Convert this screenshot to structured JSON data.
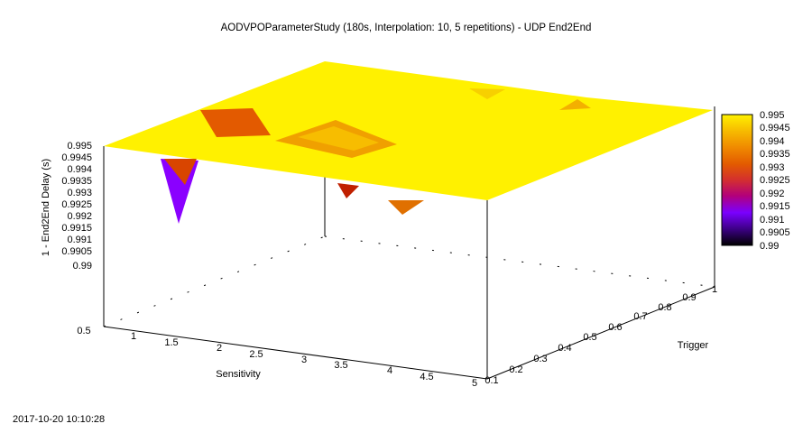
{
  "chart_data": {
    "type": "surface",
    "title": "AODVPOParameterStudy (180s, Interpolation: 10, 5 repetitions) - UDP End2End",
    "xlabel": "Sensitivity",
    "ylabel": "Trigger",
    "zlabel": "1 - End2End Delay (s)",
    "timestamp": "2017-10-20 10:10:28",
    "x_ticks": [
      "0.5",
      "1",
      "1.5",
      "2",
      "2.5",
      "3",
      "3.5",
      "4",
      "4.5",
      "5"
    ],
    "y_ticks": [
      "0.1",
      "0.2",
      "0.3",
      "0.4",
      "0.5",
      "0.6",
      "0.7",
      "0.8",
      "0.9",
      "1"
    ],
    "z_ticks": [
      "0.99",
      "0.9905",
      "0.991",
      "0.9915",
      "0.992",
      "0.9925",
      "0.993",
      "0.9935",
      "0.994",
      "0.9945",
      "0.995"
    ],
    "colorbar_ticks": [
      "0.99",
      "0.9905",
      "0.991",
      "0.9915",
      "0.992",
      "0.9925",
      "0.993",
      "0.9935",
      "0.994",
      "0.9945",
      "0.995"
    ],
    "xlim": [
      0.5,
      5
    ],
    "ylim": [
      0.1,
      1
    ],
    "zlim": [
      0.99,
      0.995
    ],
    "colormap": [
      "#000000",
      "#3a0080",
      "#7a00ff",
      "#b3007a",
      "#d32f2f",
      "#e35a00",
      "#f08a00",
      "#f7bd00",
      "#fff100"
    ],
    "x": [
      0.5,
      1.0,
      1.5,
      2.0,
      2.5,
      3.0,
      3.5,
      4.0,
      4.5,
      5.0
    ],
    "y": [
      0.1,
      0.2,
      0.3,
      0.4,
      0.5,
      0.6,
      0.7,
      0.8,
      0.9,
      1.0
    ],
    "z": [
      [
        0.99495,
        0.99495,
        0.99495,
        0.99495,
        0.99495,
        0.99495,
        0.99495,
        0.99495,
        0.99495,
        0.99495
      ],
      [
        0.99495,
        0.99495,
        0.99495,
        0.99495,
        0.99495,
        0.99495,
        0.99495,
        0.99495,
        0.99495,
        0.99495
      ],
      [
        0.99495,
        0.99495,
        0.99495,
        0.99495,
        0.99495,
        0.99495,
        0.99495,
        0.99495,
        0.99495,
        0.99495
      ],
      [
        0.99495,
        0.99495,
        0.99495,
        0.99495,
        0.99495,
        0.99495,
        0.99495,
        0.99495,
        0.99495,
        0.99495
      ],
      [
        0.99495,
        0.99495,
        0.99495,
        0.99495,
        0.99495,
        0.99495,
        0.99495,
        0.99495,
        0.99495,
        0.99495
      ],
      [
        0.99495,
        0.99495,
        0.99495,
        0.99495,
        0.99495,
        0.99495,
        0.99495,
        0.99495,
        0.99495,
        0.99495
      ],
      [
        0.99495,
        0.99495,
        0.99495,
        0.99495,
        0.99495,
        0.99495,
        0.99495,
        0.99495,
        0.99495,
        0.99495
      ],
      [
        0.99495,
        0.99495,
        0.99495,
        0.99495,
        0.99495,
        0.99495,
        0.99495,
        0.99495,
        0.99495,
        0.99495
      ],
      [
        0.99495,
        0.99495,
        0.99495,
        0.99495,
        0.99495,
        0.99495,
        0.99495,
        0.99495,
        0.99495,
        0.99495
      ],
      [
        0.99495,
        0.99495,
        0.99495,
        0.99495,
        0.99495,
        0.99495,
        0.99495,
        0.99495,
        0.99495,
        0.99495
      ]
    ]
  }
}
